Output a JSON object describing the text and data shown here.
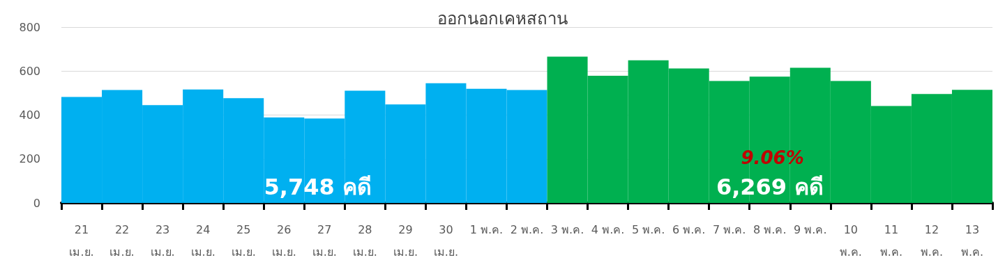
{
  "chart_data": {
    "type": "bar",
    "title": "ออกนอกเคหสถาน",
    "categories": [
      "21\nเม.ย.",
      "22\nเม.ย.",
      "23\nเม.ย.",
      "24\nเม.ย.",
      "25\nเม.ย.",
      "26\nเม.ย.",
      "27\nเม.ย.",
      "28\nเม.ย.",
      "29\nเม.ย.",
      "30\nเม.ย.",
      "1 พ.ค.",
      "2 พ.ค.",
      "3 พ.ค.",
      "4 พ.ค.",
      "5 พ.ค.",
      "6 พ.ค.",
      "7 พ.ค.",
      "8 พ.ค.",
      "9 พ.ค.",
      "10\nพ.ค.",
      "11\nพ.ค.",
      "12\nพ.ค.",
      "13\nพ.ค."
    ],
    "series": [
      {
        "color": "#00b0f0",
        "values": [
          482,
          514,
          445,
          516,
          477,
          389,
          384,
          511,
          448,
          545,
          519,
          514,
          null,
          null,
          null,
          null,
          null,
          null,
          null,
          null,
          null,
          null,
          null
        ]
      },
      {
        "color": "#00b050",
        "values": [
          null,
          null,
          null,
          null,
          null,
          null,
          null,
          null,
          null,
          null,
          null,
          null,
          666,
          579,
          649,
          612,
          555,
          575,
          615,
          555,
          441,
          496,
          515
        ]
      }
    ],
    "ylim": [
      0,
      800
    ],
    "yticks": [
      0,
      200,
      400,
      600,
      800
    ],
    "grid": "y",
    "annotations": [
      "5,748 คดี",
      "6,269 คดี",
      "9.06%"
    ]
  }
}
